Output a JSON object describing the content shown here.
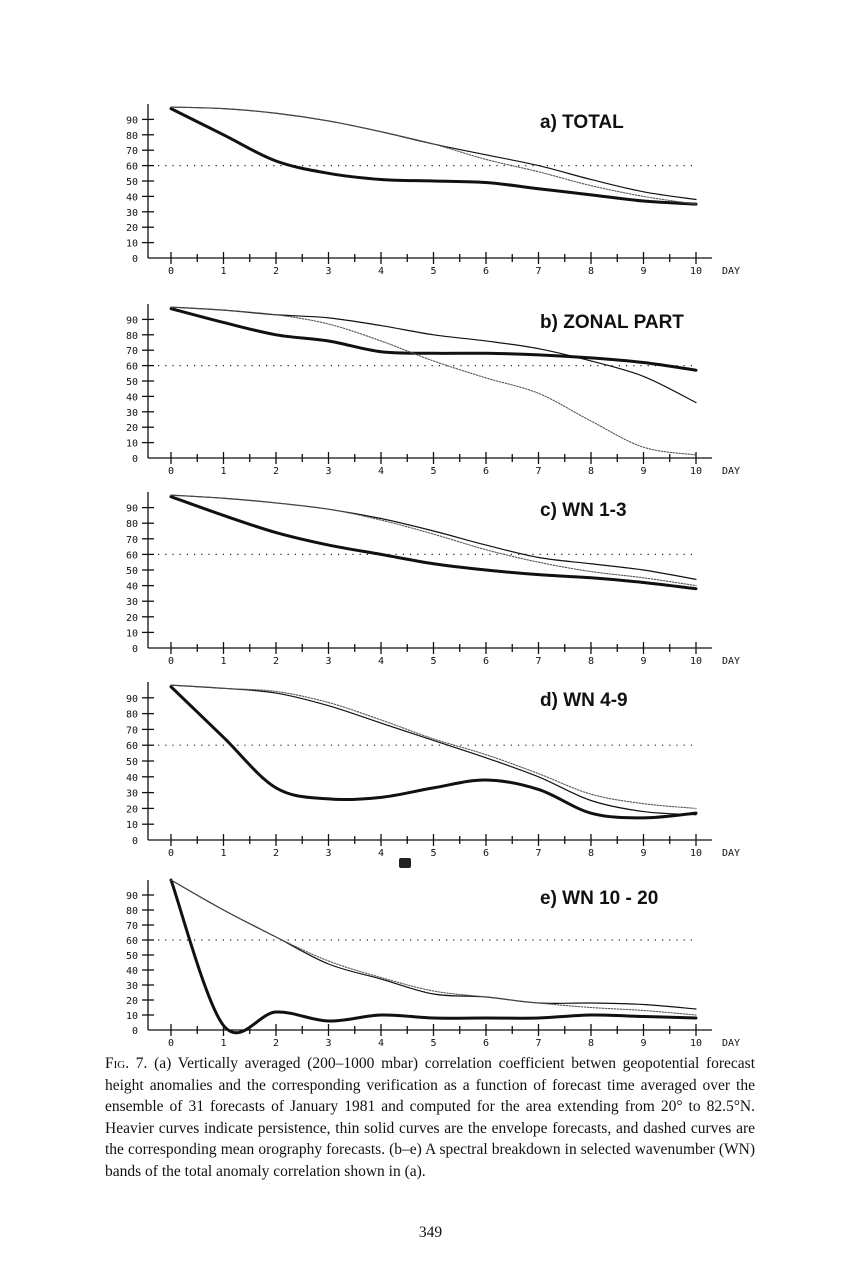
{
  "chart_data": [
    {
      "type": "line",
      "title": "a) TOTAL",
      "xlabel": "DAY",
      "x": [
        0,
        1,
        2,
        3,
        4,
        5,
        6,
        7,
        8,
        9,
        10
      ],
      "x_ticks": [
        "0",
        "1",
        "2",
        "3",
        "4",
        "5",
        "6",
        "7",
        "8",
        "9",
        "10"
      ],
      "y_ticks": [
        "0",
        "10",
        "20",
        "30",
        "40",
        "50",
        "60",
        "70",
        "80",
        "90"
      ],
      "ylim": [
        0,
        100
      ],
      "reference_line": 60,
      "series": [
        {
          "style": "heavy",
          "values": [
            97,
            80,
            63,
            55,
            51,
            50,
            49,
            45,
            41,
            37,
            35
          ]
        },
        {
          "style": "thin",
          "values": [
            98,
            97,
            94,
            89,
            82,
            74,
            67,
            60,
            51,
            43,
            38
          ]
        },
        {
          "style": "dashed",
          "values": [
            98,
            97,
            94,
            89,
            82,
            74,
            64,
            56,
            47,
            40,
            35
          ]
        }
      ]
    },
    {
      "type": "line",
      "title": "b) ZONAL PART",
      "xlabel": "DAY",
      "x": [
        0,
        1,
        2,
        3,
        4,
        5,
        6,
        7,
        8,
        9,
        10
      ],
      "x_ticks": [
        "0",
        "1",
        "2",
        "3",
        "4",
        "5",
        "6",
        "7",
        "8",
        "9",
        "10"
      ],
      "y_ticks": [
        "0",
        "10",
        "20",
        "30",
        "40",
        "50",
        "60",
        "70",
        "80",
        "90"
      ],
      "ylim": [
        0,
        100
      ],
      "reference_line": 60,
      "series": [
        {
          "style": "heavy",
          "values": [
            97,
            88,
            80,
            76,
            69,
            68,
            68,
            67,
            65,
            62,
            57
          ]
        },
        {
          "style": "thin",
          "values": [
            98,
            96,
            93,
            91,
            86,
            80,
            76,
            71,
            63,
            53,
            36
          ]
        },
        {
          "style": "dashed",
          "values": [
            98,
            96,
            93,
            87,
            76,
            63,
            52,
            42,
            24,
            7,
            2
          ]
        }
      ]
    },
    {
      "type": "line",
      "title": "c) WN 1-3",
      "xlabel": "DAY",
      "x": [
        0,
        1,
        2,
        3,
        4,
        5,
        6,
        7,
        8,
        9,
        10
      ],
      "x_ticks": [
        "0",
        "1",
        "2",
        "3",
        "4",
        "5",
        "6",
        "7",
        "8",
        "9",
        "10"
      ],
      "y_ticks": [
        "0",
        "10",
        "20",
        "30",
        "40",
        "50",
        "60",
        "70",
        "80",
        "90"
      ],
      "ylim": [
        0,
        100
      ],
      "reference_line": 60,
      "series": [
        {
          "style": "heavy",
          "values": [
            97,
            85,
            74,
            66,
            60,
            54,
            50,
            47,
            45,
            42,
            38
          ]
        },
        {
          "style": "thin",
          "values": [
            98,
            96,
            93,
            89,
            83,
            75,
            66,
            58,
            54,
            50,
            44
          ]
        },
        {
          "style": "dashed",
          "values": [
            98,
            96,
            93,
            89,
            82,
            73,
            63,
            55,
            49,
            45,
            40
          ]
        }
      ]
    },
    {
      "type": "line",
      "title": "d) WN 4-9",
      "xlabel": "DAY",
      "x": [
        0,
        1,
        2,
        3,
        4,
        5,
        6,
        7,
        8,
        9,
        10
      ],
      "x_ticks": [
        "0",
        "1",
        "2",
        "3",
        "4",
        "5",
        "6",
        "7",
        "8",
        "9",
        "10"
      ],
      "y_ticks": [
        "0",
        "10",
        "20",
        "30",
        "40",
        "50",
        "60",
        "70",
        "80",
        "90"
      ],
      "ylim": [
        0,
        100
      ],
      "reference_line": 60,
      "series": [
        {
          "style": "heavy",
          "values": [
            97,
            65,
            33,
            26,
            27,
            33,
            38,
            32,
            17,
            14,
            17
          ]
        },
        {
          "style": "thin",
          "values": [
            98,
            96,
            93,
            85,
            74,
            63,
            52,
            40,
            25,
            18,
            16
          ]
        },
        {
          "style": "dashed",
          "values": [
            98,
            96,
            94,
            87,
            76,
            64,
            54,
            42,
            29,
            23,
            20
          ]
        }
      ]
    },
    {
      "type": "line",
      "title": "e) WN 10 - 20",
      "xlabel": "DAY",
      "x": [
        0,
        1,
        2,
        3,
        4,
        5,
        6,
        7,
        8,
        9,
        10
      ],
      "x_ticks": [
        "0",
        "1",
        "2",
        "3",
        "4",
        "5",
        "6",
        "7",
        "8",
        "9",
        "10"
      ],
      "y_ticks": [
        "0",
        "10",
        "20",
        "30",
        "40",
        "50",
        "60",
        "70",
        "80",
        "90"
      ],
      "ylim": [
        0,
        100
      ],
      "reference_line": 60,
      "series": [
        {
          "style": "heavy",
          "values": [
            100,
            3,
            12,
            6,
            10,
            8,
            8,
            8,
            10,
            9,
            8
          ]
        },
        {
          "style": "thin",
          "values": [
            100,
            80,
            62,
            44,
            34,
            24,
            22,
            18,
            18,
            17,
            14
          ]
        },
        {
          "style": "dashed",
          "values": [
            100,
            80,
            62,
            46,
            35,
            26,
            22,
            18,
            15,
            13,
            10
          ]
        }
      ]
    }
  ],
  "caption": {
    "label": "Fig. 7.",
    "text": "(a) Vertically averaged (200–1000 mbar) correlation coefficient betwen geopotential forecast height anomalies and the corresponding verification as a function of forecast time averaged over the ensemble of 31 forecasts of January 1981 and computed for the area extending from 20° to 82.5°N. Heavier curves indicate persistence, thin solid curves are the envelope forecasts, and dashed curves are the corresponding mean orography forecasts. (b–e) A spectral breakdown in selected wavenumber (WN) bands of the total anomaly correlation shown in (a)."
  },
  "page_number": "349"
}
